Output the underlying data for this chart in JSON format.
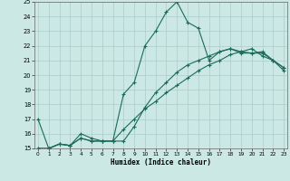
{
  "xlabel": "Humidex (Indice chaleur)",
  "xlim_min": 0,
  "xlim_max": 23,
  "ylim_min": 15,
  "ylim_max": 25,
  "xticks": [
    0,
    1,
    2,
    3,
    4,
    5,
    6,
    7,
    8,
    9,
    10,
    11,
    12,
    13,
    14,
    15,
    16,
    17,
    18,
    19,
    20,
    21,
    22,
    23
  ],
  "yticks": [
    15,
    16,
    17,
    18,
    19,
    20,
    21,
    22,
    23,
    24,
    25
  ],
  "background_color": "#cce8e5",
  "grid_color": "#aaccca",
  "line_color": "#1a6b5a",
  "line1_x": [
    0,
    1,
    2,
    3,
    4,
    5,
    6,
    7,
    8,
    9,
    10,
    11,
    12,
    13,
    14,
    15,
    16,
    17,
    18,
    19,
    20,
    21,
    22,
    23
  ],
  "line1_y": [
    17.0,
    15.0,
    15.3,
    15.2,
    16.0,
    15.7,
    15.5,
    15.5,
    18.7,
    19.5,
    22.0,
    23.0,
    24.3,
    25.0,
    23.6,
    23.2,
    21.0,
    21.6,
    21.8,
    21.5,
    21.5,
    21.6,
    21.0,
    20.5
  ],
  "line2_x": [
    0,
    1,
    2,
    3,
    4,
    5,
    6,
    7,
    8,
    9,
    10,
    11,
    12,
    13,
    14,
    15,
    16,
    17,
    18,
    19,
    20,
    21,
    22,
    23
  ],
  "line2_y": [
    15.0,
    15.0,
    15.3,
    15.2,
    15.7,
    15.5,
    15.5,
    15.5,
    16.3,
    17.0,
    17.7,
    18.2,
    18.8,
    19.3,
    19.8,
    20.3,
    20.7,
    21.0,
    21.4,
    21.6,
    21.8,
    21.3,
    21.0,
    20.5
  ],
  "line3_x": [
    0,
    1,
    2,
    3,
    4,
    5,
    6,
    7,
    8,
    9,
    10,
    11,
    12,
    13,
    14,
    15,
    16,
    17,
    18,
    19,
    20,
    21,
    22,
    23
  ],
  "line3_y": [
    15.0,
    15.0,
    15.3,
    15.2,
    15.7,
    15.5,
    15.5,
    15.5,
    15.5,
    16.5,
    17.8,
    18.8,
    19.5,
    20.2,
    20.7,
    21.0,
    21.3,
    21.6,
    21.8,
    21.6,
    21.5,
    21.5,
    21.0,
    20.3
  ]
}
